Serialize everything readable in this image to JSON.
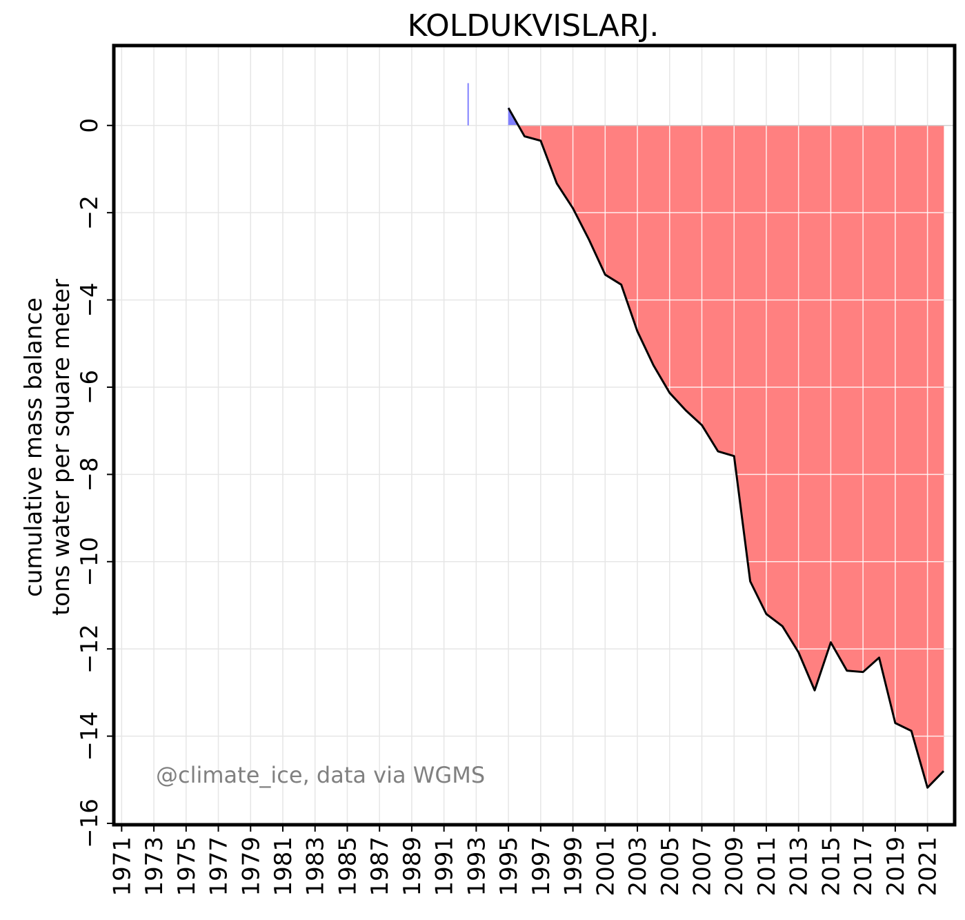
{
  "chart_data": {
    "type": "area",
    "title": "KOLDUKVISLARJ.",
    "ylabel": [
      "cumulative mass balance",
      "tons water per square meter"
    ],
    "xlabel": "",
    "watermark": "@climate_ice, data via WGMS",
    "xlim": [
      1970.6,
      2022.6
    ],
    "ylim": [
      -16,
      1.8
    ],
    "yticks": [
      0,
      -2,
      -4,
      -6,
      -8,
      -10,
      -12,
      -14,
      -16
    ],
    "ytick_labels": [
      "0",
      "−2",
      "−4",
      "−6",
      "−8",
      "−10",
      "−12",
      "−14",
      "−16"
    ],
    "xticks": [
      1971,
      1973,
      1975,
      1977,
      1979,
      1981,
      1983,
      1985,
      1987,
      1989,
      1991,
      1993,
      1995,
      1997,
      1999,
      2001,
      2003,
      2005,
      2007,
      2009,
      2011,
      2013,
      2015,
      2017,
      2019,
      2021
    ],
    "grid": true,
    "positive_color": "#8080ff",
    "negative_color": "#ff8080",
    "isolated_bar": {
      "year": 1992.5,
      "value": 0.97,
      "color": "#8080ff"
    },
    "series": [
      {
        "x": [
          1995,
          1996,
          1997,
          1998,
          1999,
          2000,
          2001,
          2002,
          2003,
          2004,
          2005,
          2006,
          2007,
          2008,
          2009,
          2010,
          2011,
          2012,
          2013,
          2014,
          2015,
          2016,
          2017,
          2018,
          2019,
          2020,
          2021,
          2022
        ],
        "values": [
          0.4,
          -0.25,
          -0.35,
          -1.33,
          -1.9,
          -2.62,
          -3.42,
          -3.65,
          -4.72,
          -5.5,
          -6.13,
          -6.53,
          -6.87,
          -7.47,
          -7.58,
          -10.45,
          -11.2,
          -11.48,
          -12.08,
          -12.95,
          -11.85,
          -12.5,
          -12.53,
          -12.2,
          -13.7,
          -13.88,
          -15.18,
          -14.8
        ]
      }
    ]
  }
}
